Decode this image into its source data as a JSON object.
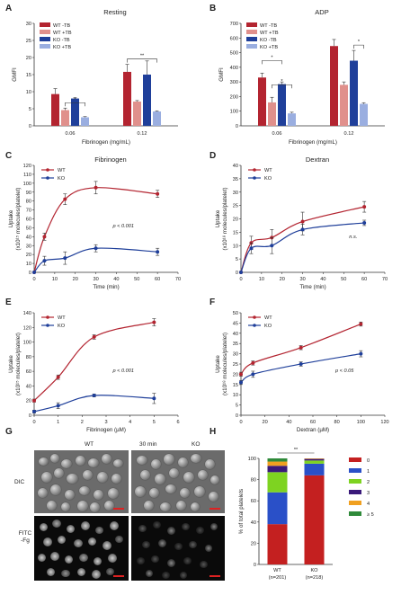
{
  "panel_letters": [
    "A",
    "B",
    "C",
    "D",
    "E",
    "F",
    "G",
    "H"
  ],
  "chart_data": [
    {
      "id": "A",
      "type": "bar",
      "title": "Resting",
      "xlabel": "Fibrinogen (mg/mL)",
      "ylabel": "GMFI",
      "categories": [
        "0.06",
        "0.12"
      ],
      "ylim": [
        0,
        30
      ],
      "yticks": [
        0,
        5,
        10,
        15,
        20,
        25,
        30
      ],
      "legend_position": "top-left",
      "series": [
        {
          "name": "WT -TB",
          "color": "#b32430",
          "values": [
            9.3,
            15.8
          ],
          "errors": [
            1.6,
            2.2
          ]
        },
        {
          "name": "WT +TB",
          "color": "#e0908c",
          "values": [
            4.6,
            7.1
          ],
          "errors": [
            0.6,
            0.3
          ]
        },
        {
          "name": "KO -TB",
          "color": "#1f3f9a",
          "values": [
            8.0,
            15.0
          ],
          "errors": [
            0.2,
            4.0
          ]
        },
        {
          "name": "KO +TB",
          "color": "#9aaee0",
          "values": [
            2.5,
            4.2
          ],
          "errors": [
            0.2,
            0.2
          ]
        }
      ],
      "significance": [
        {
          "text": "*",
          "from": [
            0,
            1
          ],
          "to": [
            0,
            3
          ]
        },
        {
          "text": "**",
          "from": [
            1,
            0
          ],
          "to": [
            1,
            3
          ]
        }
      ]
    },
    {
      "id": "B",
      "type": "bar",
      "title": "ADP",
      "xlabel": "Fibrinogen (mg/mL)",
      "ylabel": "GMFI",
      "categories": [
        "0.06",
        "0.12"
      ],
      "ylim": [
        0,
        700
      ],
      "yticks": [
        0,
        100,
        200,
        300,
        400,
        500,
        600,
        700
      ],
      "legend_position": "top-left",
      "series": [
        {
          "name": "WT -TB",
          "color": "#b32430",
          "values": [
            330,
            545
          ],
          "errors": [
            30,
            45
          ]
        },
        {
          "name": "WT +TB",
          "color": "#e0908c",
          "values": [
            160,
            280
          ],
          "errors": [
            35,
            20
          ]
        },
        {
          "name": "KO -TB",
          "color": "#1f3f9a",
          "values": [
            285,
            445
          ],
          "errors": [
            15,
            70
          ]
        },
        {
          "name": "KO +TB",
          "color": "#9aaee0",
          "values": [
            85,
            150
          ],
          "errors": [
            8,
            8
          ]
        }
      ],
      "significance": [
        {
          "text": "*",
          "from": [
            0,
            0
          ],
          "to": [
            0,
            2
          ]
        },
        {
          "text": "*",
          "from": [
            0,
            1
          ],
          "to": [
            0,
            3
          ]
        },
        {
          "text": "*",
          "from": [
            1,
            2
          ],
          "to": [
            1,
            3
          ]
        }
      ]
    },
    {
      "id": "C",
      "type": "line",
      "title": "Fibrinogen",
      "xlabel": "Time (min)",
      "ylabel": [
        "Uptake",
        "(x10¹⁵ molecules/platelet)"
      ],
      "xlim": [
        0,
        70
      ],
      "xticks": [
        0,
        10,
        20,
        30,
        40,
        50,
        60,
        70
      ],
      "ylim": [
        0,
        120
      ],
      "yticks": [
        0,
        10,
        20,
        30,
        40,
        50,
        60,
        70,
        80,
        90,
        100,
        110,
        120
      ],
      "legend_position": "top-left",
      "annotation": "p < 0.001",
      "series": [
        {
          "name": "WT",
          "color": "#b32430",
          "x": [
            0,
            5,
            15,
            30,
            60
          ],
          "y": [
            0,
            40,
            82,
            95,
            88
          ],
          "err": [
            0,
            4,
            6,
            7,
            4
          ]
        },
        {
          "name": "KO",
          "color": "#1f3f9a",
          "x": [
            0,
            5,
            15,
            30,
            60
          ],
          "y": [
            0,
            13,
            16,
            27,
            23
          ],
          "err": [
            0,
            5,
            7,
            4,
            4
          ]
        }
      ]
    },
    {
      "id": "D",
      "type": "line",
      "title": "Dextran",
      "xlabel": "Time (min)",
      "ylabel": [
        "Uptake",
        "(x10¹⁸ molecules/platelet)"
      ],
      "xlim": [
        0,
        70
      ],
      "xticks": [
        0,
        10,
        20,
        30,
        40,
        50,
        60,
        70
      ],
      "ylim": [
        0,
        40
      ],
      "yticks": [
        0,
        5,
        10,
        15,
        20,
        25,
        30,
        35,
        40
      ],
      "legend_position": "top-left",
      "annotation": "n.s.",
      "series": [
        {
          "name": "WT",
          "color": "#b32430",
          "x": [
            0,
            5,
            15,
            30,
            60
          ],
          "y": [
            0,
            11,
            13,
            19,
            24.5
          ],
          "err": [
            0,
            2.5,
            3,
            3.5,
            2
          ]
        },
        {
          "name": "KO",
          "color": "#1f3f9a",
          "x": [
            0,
            5,
            15,
            30,
            60
          ],
          "y": [
            0,
            9,
            10,
            16,
            18.5
          ],
          "err": [
            0,
            2,
            3,
            2,
            1
          ]
        }
      ]
    },
    {
      "id": "E",
      "type": "line",
      "title": "",
      "xlabel": "Fibrinogen (µM)",
      "ylabel": [
        "Uptake",
        "(x10¹⁵ molecules/platelet)"
      ],
      "xlim": [
        0,
        6
      ],
      "xticks": [
        0,
        1,
        2,
        3,
        4,
        5,
        6
      ],
      "ylim": [
        0,
        140
      ],
      "yticks": [
        0,
        20,
        40,
        60,
        80,
        100,
        120,
        140
      ],
      "legend_position": "top-left",
      "annotation": "p < 0.001",
      "series": [
        {
          "name": "WT",
          "color": "#b32430",
          "x": [
            0,
            1,
            2.5,
            5
          ],
          "y": [
            20,
            52,
            107,
            127
          ],
          "err": [
            2,
            3,
            3,
            5
          ]
        },
        {
          "name": "KO",
          "color": "#1f3f9a",
          "x": [
            0,
            1,
            2.5,
            5
          ],
          "y": [
            5,
            13,
            27,
            23
          ],
          "err": [
            2,
            4,
            2,
            7
          ]
        }
      ]
    },
    {
      "id": "F",
      "type": "line",
      "title": "",
      "xlabel": "Dextran (µM)",
      "ylabel": [
        "Uptake",
        "(x10¹⁸ molecules/platelet)"
      ],
      "xlim": [
        0,
        120
      ],
      "xticks": [
        0,
        20,
        40,
        60,
        80,
        100,
        120
      ],
      "ylim": [
        0,
        50
      ],
      "yticks": [
        0,
        5,
        10,
        15,
        20,
        25,
        30,
        35,
        40,
        45,
        50
      ],
      "legend_position": "top-left",
      "annotation": "p < 0.05",
      "series": [
        {
          "name": "WT",
          "color": "#b32430",
          "x": [
            0,
            10,
            50,
            100
          ],
          "y": [
            20,
            25.5,
            33,
            44.5
          ],
          "err": [
            1,
            1,
            1,
            1
          ]
        },
        {
          "name": "KO",
          "color": "#1f3f9a",
          "x": [
            0,
            10,
            50,
            100
          ],
          "y": [
            16,
            20,
            25,
            30
          ],
          "err": [
            1,
            1.5,
            1,
            1.5
          ]
        }
      ]
    },
    {
      "id": "H",
      "type": "bar",
      "stacked": true,
      "ylabel": "% of total platelets",
      "categories": [
        "WT",
        "KO"
      ],
      "category_sublabels": [
        "(n=201)",
        "(n=218)"
      ],
      "ylim": [
        0,
        100
      ],
      "yticks": [
        0,
        20,
        40,
        60,
        80,
        100
      ],
      "legend_position": "right",
      "significance": [
        {
          "text": "**",
          "from": [
            0
          ],
          "to": [
            1
          ]
        }
      ],
      "series": [
        {
          "name": "0",
          "color": "#c42020",
          "values": [
            38,
            84
          ]
        },
        {
          "name": "1",
          "color": "#2a50c8",
          "values": [
            30,
            11
          ]
        },
        {
          "name": "2",
          "color": "#7ed321",
          "values": [
            19,
            3
          ]
        },
        {
          "name": "3",
          "color": "#3a1a7a",
          "values": [
            6,
            1.5
          ]
        },
        {
          "name": "4",
          "color": "#f0a020",
          "values": [
            4,
            0.5
          ]
        },
        {
          "name": "≥ 5",
          "color": "#2f8a3a",
          "values": [
            3,
            0
          ]
        }
      ]
    }
  ],
  "panel_g": {
    "time_label": "30 min",
    "col_labels": [
      "WT",
      "KO"
    ],
    "row_labels": [
      "DIC",
      "FITC\n-Fg"
    ]
  }
}
